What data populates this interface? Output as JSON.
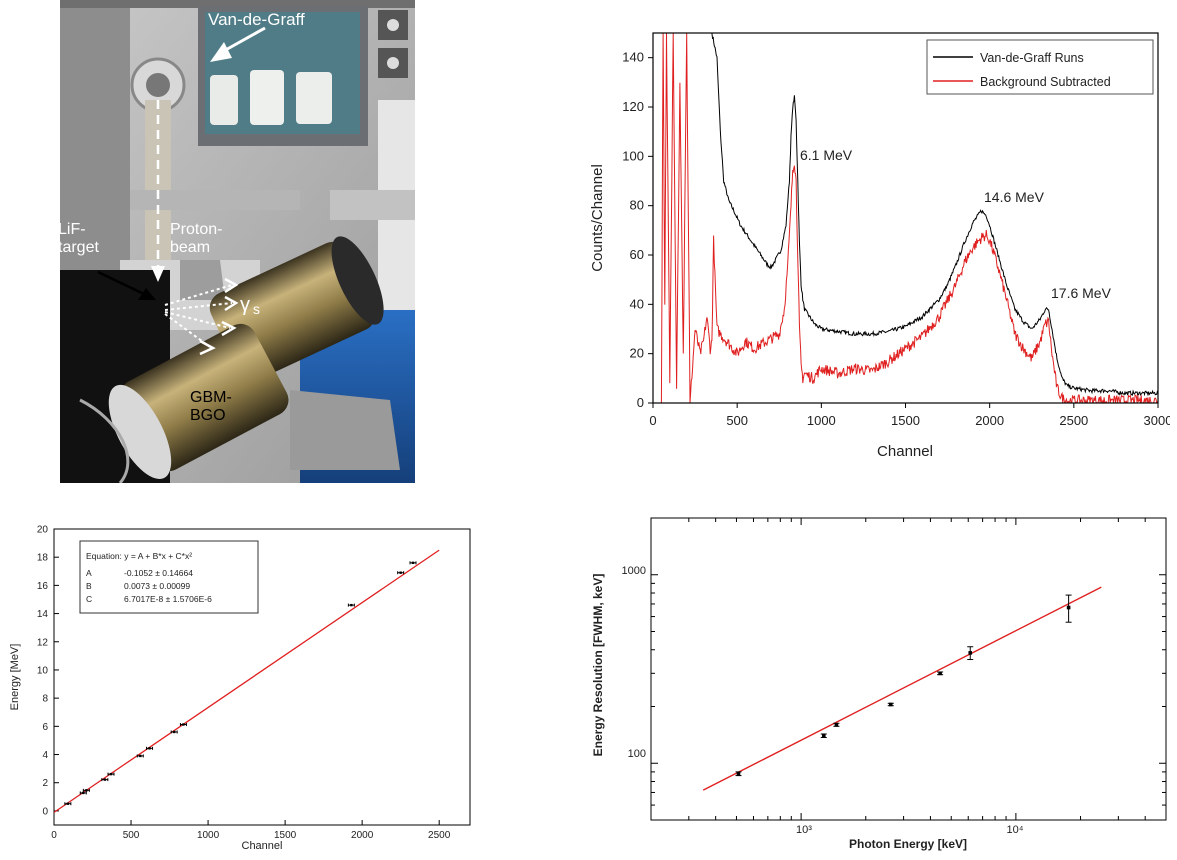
{
  "photo": {
    "labels": {
      "van_de_graff": "Van-de-Graff",
      "lif_target": [
        "LiF-",
        "target"
      ],
      "proton_beam": [
        "Proton-",
        "beam"
      ],
      "gammas_gamma": "γ",
      "gammas_s": "s",
      "gbm_bgo": [
        "GBM-",
        "BGO"
      ]
    },
    "colors": {
      "label_text": "#ffffff",
      "arrow": "#ffffff"
    }
  },
  "chart_data": [
    {
      "id": "spectrum",
      "type": "line",
      "xlabel": "Channel",
      "ylabel": "Counts/Channel",
      "xlim": [
        0,
        3000
      ],
      "ylim": [
        0,
        150
      ],
      "xticks": [
        0,
        500,
        1000,
        1500,
        2000,
        2500,
        3000
      ],
      "yticks": [
        0,
        20,
        40,
        60,
        80,
        100,
        120,
        140
      ],
      "grid": false,
      "legend_position": "top-right",
      "series": [
        {
          "name": "Van-de-Graff Runs",
          "color": "#000000",
          "x": [
            350,
            380,
            400,
            420,
            450,
            480,
            520,
            560,
            600,
            640,
            680,
            700,
            720,
            760,
            790,
            810,
            820,
            830,
            840,
            850,
            860,
            870,
            880,
            890,
            900,
            930,
            960,
            1000,
            1100,
            1200,
            1300,
            1400,
            1500,
            1600,
            1700,
            1750,
            1800,
            1850,
            1900,
            1930,
            1950,
            1980,
            2000,
            2050,
            2100,
            2150,
            2200,
            2250,
            2300,
            2330,
            2350,
            2370,
            2400,
            2430,
            2460,
            2500,
            2600,
            2700,
            2800,
            2900,
            3000
          ],
          "y": [
            150,
            140,
            110,
            90,
            82,
            78,
            72,
            68,
            64,
            60,
            56,
            55,
            57,
            62,
            72,
            90,
            108,
            120,
            124,
            115,
            90,
            65,
            48,
            42,
            38,
            35,
            32,
            30,
            29,
            28,
            28,
            29,
            31,
            35,
            42,
            48,
            56,
            65,
            73,
            76,
            78,
            76,
            72,
            60,
            48,
            38,
            33,
            30,
            34,
            38,
            38,
            30,
            18,
            10,
            7,
            6,
            5,
            5,
            4,
            4,
            4
          ]
        },
        {
          "name": "Background Subtracted",
          "color": "#e02020",
          "x": [
            50,
            60,
            70,
            80,
            100,
            120,
            140,
            160,
            180,
            200,
            220,
            250,
            280,
            300,
            320,
            340,
            350,
            360,
            380,
            400,
            450,
            500,
            550,
            600,
            650,
            700,
            750,
            780,
            800,
            820,
            830,
            840,
            850,
            860,
            870,
            880,
            890,
            900,
            950,
            1000,
            1100,
            1200,
            1300,
            1400,
            1500,
            1600,
            1700,
            1800,
            1850,
            1900,
            1950,
            1980,
            2000,
            2050,
            2100,
            2150,
            2200,
            2250,
            2300,
            2330,
            2350,
            2370,
            2400,
            2430,
            2460,
            2500,
            2600,
            2700,
            2800,
            2900,
            3000
          ],
          "y": [
            0,
            150,
            40,
            150,
            10,
            150,
            5,
            130,
            20,
            150,
            0,
            30,
            20,
            25,
            35,
            22,
            25,
            66,
            30,
            28,
            24,
            20,
            25,
            22,
            24,
            26,
            28,
            38,
            55,
            80,
            95,
            98,
            90,
            60,
            30,
            15,
            10,
            12,
            10,
            14,
            12,
            14,
            13,
            17,
            22,
            27,
            35,
            48,
            57,
            63,
            67,
            68,
            66,
            55,
            42,
            28,
            22,
            18,
            25,
            32,
            33,
            20,
            6,
            2,
            1,
            1,
            1,
            1,
            1,
            1,
            1
          ]
        }
      ],
      "annotations": [
        "6.1 MeV",
        "14.6 MeV",
        "17.6 MeV"
      ]
    },
    {
      "id": "calibration",
      "type": "scatter",
      "xlabel": "Channel",
      "ylabel": "Energy [MeV]",
      "xlim": [
        0,
        2700
      ],
      "ylim": [
        -1,
        20
      ],
      "xticks": [
        0,
        500,
        1000,
        1500,
        2000,
        2500
      ],
      "yticks": [
        0,
        2,
        4,
        6,
        8,
        10,
        12,
        14,
        16,
        18,
        20
      ],
      "grid": false,
      "points": {
        "x": [
          90,
          190,
          210,
          330,
          370,
          560,
          620,
          780,
          840,
          1930,
          2250,
          2330
        ],
        "y": [
          0.511,
          1.275,
          1.46,
          2.22,
          2.61,
          3.9,
          4.44,
          5.6,
          6.13,
          14.6,
          16.9,
          17.6
        ]
      },
      "fit_line": {
        "x": [
          0,
          2500
        ],
        "y": [
          -0.1052,
          18.5
        ],
        "color": "#e02020"
      },
      "fit_box": {
        "equation": "Equation: y = A + B*x + C*x²",
        "rows": [
          {
            "param": "A",
            "value": "-0.1052 ± 0.14664"
          },
          {
            "param": "B",
            "value": "0.0073 ± 0.00099"
          },
          {
            "param": "C",
            "value": "6.7017E-8 ± 1.5706E-6"
          }
        ]
      }
    },
    {
      "id": "resolution",
      "type": "scatter",
      "xlabel": "Photon Energy [keV]",
      "ylabel": "Energy Resolution [FWHM, keV]",
      "x_scale": "log",
      "y_scale": "log",
      "xlim": [
        200,
        50000
      ],
      "ylim": [
        50,
        2000
      ],
      "xtick_labels": [
        "10³",
        "10⁴"
      ],
      "ytick_labels": [
        "100",
        "1000"
      ],
      "grid": false,
      "points": {
        "x": [
          511,
          1275,
          1460,
          2614,
          4438,
          6130,
          17600
        ],
        "y": [
          88,
          140,
          160,
          205,
          300,
          385,
          670
        ],
        "yerr": [
          2,
          3,
          3,
          3,
          5,
          30,
          110
        ]
      },
      "fit_line": {
        "x": [
          350,
          25000
        ],
        "y": [
          72,
          860
        ],
        "color": "#e02020"
      }
    }
  ]
}
